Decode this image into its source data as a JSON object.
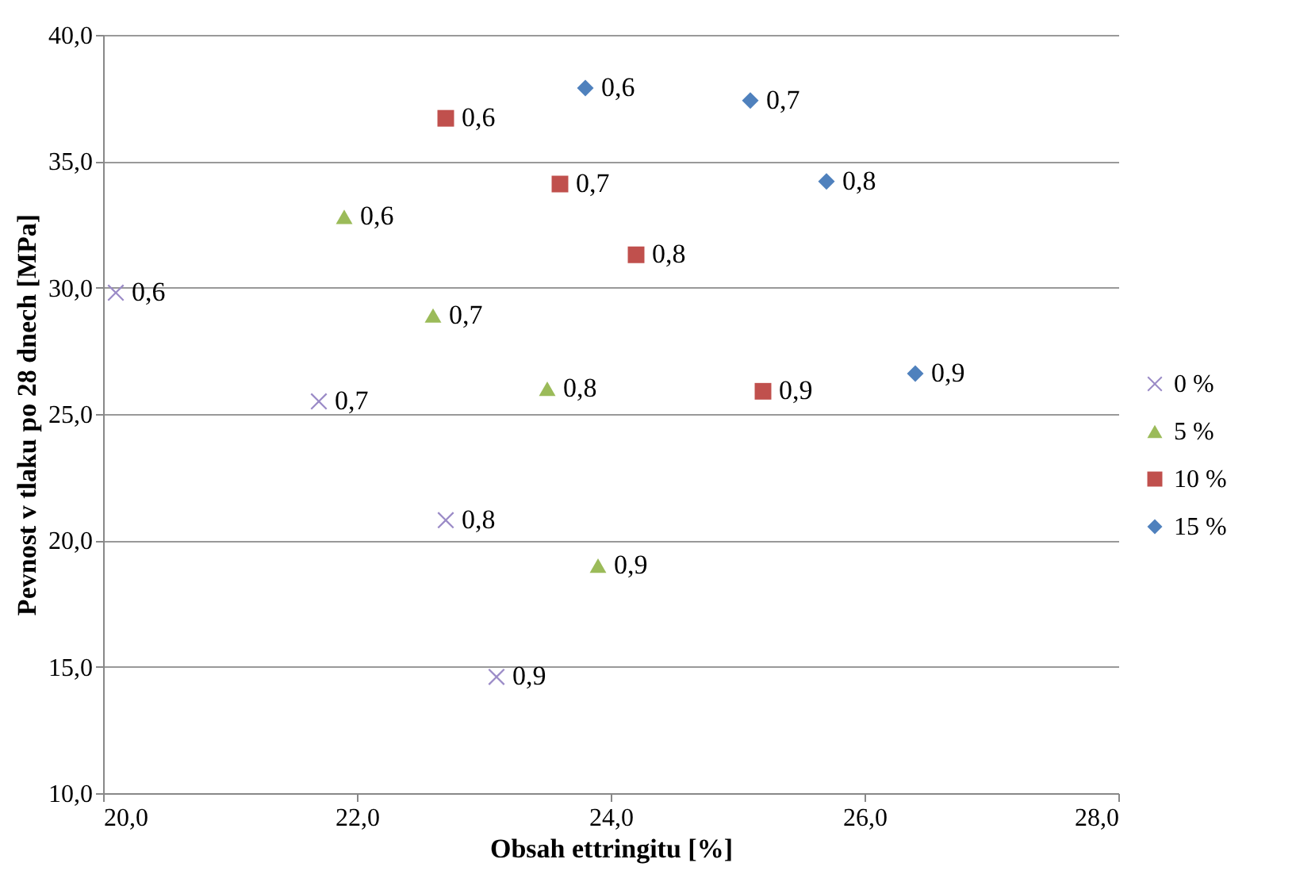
{
  "chart_data": {
    "type": "scatter",
    "xlabel": "Obsah ettringitu [%]",
    "ylabel": "Pevnost v tlaku po 28 dnech [MPa]",
    "xlim": [
      20,
      28
    ],
    "xticks": [
      {
        "value": 20,
        "label": "20,0"
      },
      {
        "value": 22,
        "label": "22,0"
      },
      {
        "value": 24,
        "label": "24,0"
      },
      {
        "value": 26,
        "label": "26,0"
      },
      {
        "value": 28,
        "label": "28,0"
      }
    ],
    "ylim": [
      10,
      40
    ],
    "yticks": [
      {
        "value": 10,
        "label": "10,0"
      },
      {
        "value": 15,
        "label": "15,0"
      },
      {
        "value": 20,
        "label": "20,0"
      },
      {
        "value": 25,
        "label": "25,0"
      },
      {
        "value": 30,
        "label": "30,0"
      },
      {
        "value": 35,
        "label": "35,0"
      },
      {
        "value": 40,
        "label": "40,0"
      }
    ],
    "grid": "y",
    "legend": "right",
    "series": [
      {
        "name": "0 %",
        "color": "#9b8bc7",
        "marker": "cross",
        "x": [
          20.1,
          21.7,
          22.7,
          23.1
        ],
        "values": [
          29.8,
          25.5,
          20.8,
          14.6
        ]
      },
      {
        "name": "5 %",
        "color": "#9bbb59",
        "marker": "triangle",
        "x": [
          21.9,
          22.6,
          23.5,
          23.9
        ],
        "values": [
          32.8,
          28.9,
          26.0,
          19.0
        ]
      },
      {
        "name": "10 %",
        "color": "#c0504d",
        "marker": "square",
        "x": [
          22.7,
          23.6,
          24.2,
          25.2
        ],
        "values": [
          36.7,
          34.1,
          31.3,
          25.9
        ]
      },
      {
        "name": "15 %",
        "color": "#4f81bd",
        "marker": "diamond",
        "x": [
          23.8,
          25.1,
          25.7,
          26.4
        ],
        "values": [
          37.9,
          37.4,
          34.2,
          26.6
        ]
      }
    ],
    "annotations": [
      {
        "text": "0,6",
        "x": 20.1,
        "y": 29.8
      },
      {
        "text": "0,7",
        "x": 21.7,
        "y": 25.5
      },
      {
        "text": "0,8",
        "x": 22.7,
        "y": 20.8
      },
      {
        "text": "0,9",
        "x": 23.1,
        "y": 14.6
      },
      {
        "text": "0,6",
        "x": 21.9,
        "y": 32.8
      },
      {
        "text": "0,7",
        "x": 22.6,
        "y": 28.9
      },
      {
        "text": "0,8",
        "x": 23.5,
        "y": 26.0
      },
      {
        "text": "0,9",
        "x": 23.9,
        "y": 19.0
      },
      {
        "text": "0,6",
        "x": 22.7,
        "y": 36.7
      },
      {
        "text": "0,7",
        "x": 23.6,
        "y": 34.1
      },
      {
        "text": "0,8",
        "x": 24.2,
        "y": 31.3
      },
      {
        "text": "0,9",
        "x": 25.2,
        "y": 25.9
      },
      {
        "text": "0,6",
        "x": 23.8,
        "y": 37.9
      },
      {
        "text": "0,7",
        "x": 25.1,
        "y": 37.4
      },
      {
        "text": "0,8",
        "x": 25.7,
        "y": 34.2
      },
      {
        "text": "0,9",
        "x": 26.4,
        "y": 26.6
      }
    ]
  }
}
